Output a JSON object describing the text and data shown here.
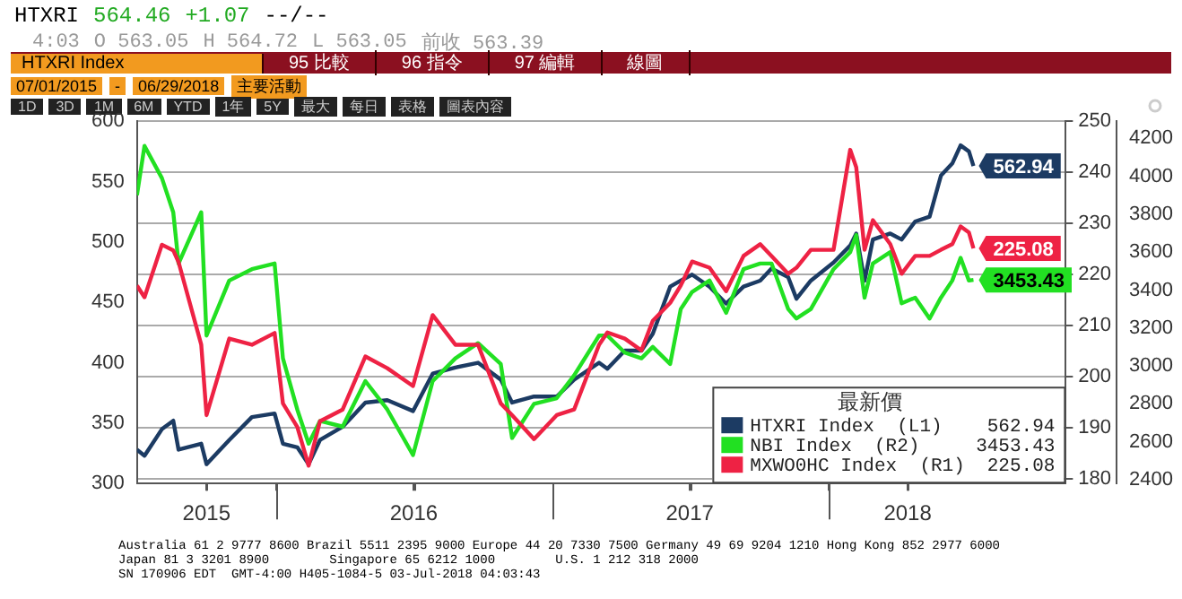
{
  "chart_data": {
    "type": "line",
    "annotations": [
      "HTXRI",
      "564.46",
      "+1.07",
      "--/--",
      "4:03",
      "O 563.05",
      "H 564.72",
      "L 563.05",
      "前收 563.39",
      "HTXRI Index",
      "95 比較",
      "96 指令",
      "97 編輯",
      "線圖",
      "07/01/2015",
      "-",
      "06/29/2018",
      "主要活動",
      "1D",
      "3D",
      "1M",
      "6M",
      "YTD",
      "1年",
      "5Y",
      "最大",
      "每日",
      "表格",
      "圖表內容",
      "Australia 61 2 9777 8600 Brazil 5511 2395 9000 Europe 44 20 7330 7500 Germany 49 69 9204 1210 Hong Kong 852 2977 6000",
      "Japan 81 3 3201 8900        Singapore 65 6212 1000        U.S. 1 212 318 2000",
      "SN 170906 EDT  GMT-4:00 H405-1084-5 03-Jul-2018 04:03:43",
      "562.94",
      "3453.43",
      "225.08"
    ],
    "x": [
      "2015-07-01",
      "2015-07-11",
      "2015-08-03",
      "2015-08-18",
      "2015-08-25",
      "2015-09-24",
      "2015-10-01",
      "2015-10-31",
      "2015-11-30",
      "2015-12-30",
      "2016-01-10",
      "2016-01-29",
      "2016-02-13",
      "2016-02-28",
      "2016-03-29",
      "2016-04-28",
      "2016-05-27",
      "2016-06-30",
      "2016-07-26",
      "2016-08-25",
      "2016-09-24",
      "2016-10-24",
      "2016-11-08",
      "2016-12-07",
      "2017-01-06",
      "2017-01-29",
      "2017-03-03",
      "2017-03-14",
      "2017-04-06",
      "2017-04-28",
      "2017-05-13",
      "2017-06-05",
      "2017-06-19",
      "2017-07-04",
      "2017-07-27",
      "2017-08-18",
      "2017-09-10",
      "2017-10-02",
      "2017-10-17",
      "2017-11-08",
      "2017-11-19",
      "2017-12-08",
      "2018-01-07",
      "2018-01-29",
      "2018-02-06",
      "2018-02-17",
      "2018-02-28",
      "2018-03-23",
      "2018-04-07",
      "2018-04-25",
      "2018-05-14",
      "2018-05-29",
      "2018-06-13",
      "2018-06-24",
      "2018-07-05",
      "2018-07-11"
    ],
    "series": [
      {
        "name": "HTXRI Index  (L1)",
        "color": "#1c3b63",
        "values": [
          328,
          323,
          345,
          352,
          328,
          333,
          316,
          336,
          355,
          358,
          333,
          330,
          316,
          336,
          347,
          367,
          369,
          360,
          391,
          396,
          400,
          386,
          367,
          372,
          372,
          386,
          400,
          395,
          410,
          410,
          424,
          463,
          468,
          473,
          463,
          449,
          463,
          468,
          478,
          471,
          453,
          468,
          483,
          497,
          507,
          468,
          502,
          507,
          502,
          517,
          521,
          555,
          565,
          580,
          575,
          562.94
        ],
        "value_labels": [
          null,
          null,
          null,
          null,
          null,
          null,
          null,
          null,
          null,
          null,
          null,
          null,
          null,
          null,
          null,
          null,
          null,
          null,
          null,
          null,
          null,
          null,
          null,
          null,
          null,
          null,
          null,
          null,
          null,
          null,
          null,
          null,
          null,
          null,
          null,
          null,
          null,
          null,
          null,
          null,
          null,
          null,
          null,
          null,
          null,
          null,
          null,
          null,
          null,
          null,
          null,
          null,
          null,
          null,
          null,
          "562.94"
        ]
      },
      {
        "name": "NBI Index  (R2)",
        "color": "#22e022",
        "axis": "y3",
        "values": [
          3900,
          4160,
          3990,
          3810,
          3540,
          3810,
          3160,
          3450,
          3510,
          3540,
          3040,
          2770,
          2590,
          2710,
          2680,
          2920,
          2770,
          2530,
          2920,
          3040,
          3120,
          3010,
          2620,
          2800,
          2830,
          2950,
          3160,
          3160,
          3070,
          3040,
          3100,
          3010,
          3300,
          3390,
          3450,
          3280,
          3510,
          3540,
          3540,
          3300,
          3250,
          3300,
          3510,
          3600,
          3690,
          3360,
          3540,
          3600,
          3330,
          3360,
          3250,
          3360,
          3450,
          3570,
          3450,
          3453.43
        ],
        "value_labels": [
          null,
          null,
          null,
          null,
          null,
          null,
          null,
          null,
          null,
          null,
          null,
          null,
          null,
          null,
          null,
          null,
          null,
          null,
          null,
          null,
          null,
          null,
          null,
          null,
          null,
          null,
          null,
          null,
          null,
          null,
          null,
          null,
          null,
          null,
          null,
          null,
          null,
          null,
          null,
          null,
          null,
          null,
          null,
          null,
          null,
          null,
          null,
          null,
          null,
          null,
          null,
          null,
          null,
          null,
          null,
          "3453.43"
        ]
      },
      {
        "name": "MXWO0HC Index  (R1)",
        "color": "#ee2244",
        "axis": "y2",
        "values": [
          217.8,
          215.5,
          225.8,
          224.7,
          222.4,
          206.2,
          192.4,
          207.4,
          206.2,
          208.5,
          194.7,
          190.1,
          182.5,
          191.2,
          193.5,
          203.9,
          201.6,
          198.1,
          212.0,
          206.2,
          206.2,
          194.7,
          192.4,
          187.7,
          192.4,
          193.5,
          206.2,
          208.6,
          207.4,
          205.1,
          210.9,
          214.4,
          217.8,
          222.5,
          221.3,
          216.7,
          223.6,
          225.9,
          223.6,
          220.1,
          221.3,
          224.8,
          224.8,
          244.4,
          241.0,
          224.8,
          230.6,
          225.9,
          220.1,
          223.6,
          223.6,
          224.8,
          225.9,
          229.4,
          228.2,
          225.08
        ],
        "value_labels": [
          null,
          null,
          null,
          null,
          null,
          null,
          null,
          null,
          null,
          null,
          null,
          null,
          null,
          null,
          null,
          null,
          null,
          null,
          null,
          null,
          null,
          null,
          null,
          null,
          null,
          null,
          null,
          null,
          null,
          null,
          null,
          null,
          null,
          null,
          null,
          null,
          null,
          null,
          null,
          null,
          null,
          null,
          null,
          null,
          null,
          null,
          null,
          null,
          null,
          null,
          null,
          null,
          null,
          null,
          null,
          "225.08"
        ]
      }
    ],
    "xlim": [
      "2015-07-01",
      "2018-11-10"
    ],
    "xticks": [
      {
        "value": "2015-10-01",
        "label": "2015"
      },
      {
        "value": "2016-01-01",
        "label": null
      },
      {
        "value": "2016-07-01",
        "label": "2016"
      },
      {
        "value": "2017-01-01",
        "label": null
      },
      {
        "value": "2017-07-01",
        "label": "2017"
      },
      {
        "value": "2018-01-01",
        "label": null
      },
      {
        "value": "2018-04-15",
        "label": "2018"
      }
    ],
    "ylim": [
      300,
      600
    ],
    "yticks": [
      300,
      350,
      400,
      450,
      500,
      550,
      600
    ],
    "y2lim": [
      179,
      250
    ],
    "y2ticks": [
      180,
      190,
      200,
      210,
      220,
      230,
      240,
      250
    ],
    "y3lim": [
      2380,
      4290
    ],
    "y3ticks": [
      2400,
      2600,
      2800,
      3000,
      3200,
      3400,
      3600,
      3800,
      4000,
      4200
    ],
    "grid": "y",
    "legend": "bottom right",
    "legend_title": "最新價",
    "marker": "none",
    "line_style": "solid"
  }
}
